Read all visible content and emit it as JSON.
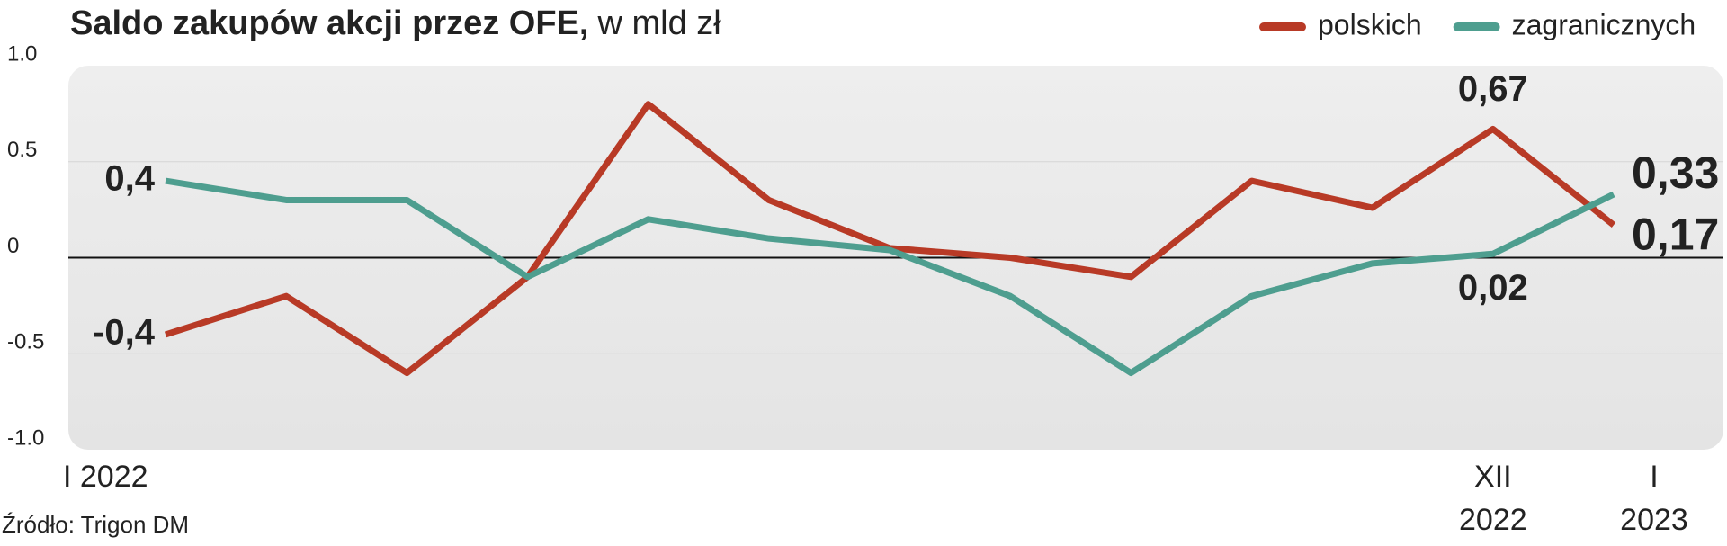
{
  "chart_data": {
    "type": "line",
    "title": "Saldo zakupów akcji przez OFE,",
    "subtitle": "w mld zł",
    "source": "Źródło: Trigon DM",
    "categories": [
      "I 2022",
      null,
      null,
      null,
      null,
      null,
      null,
      null,
      null,
      null,
      null,
      "XII 2022",
      "I 2023"
    ],
    "series": [
      {
        "name": "polskich",
        "color": "#b83a26",
        "values": [
          -0.4,
          -0.2,
          -0.6,
          -0.1,
          0.8,
          0.3,
          0.05,
          0.0,
          -0.1,
          0.4,
          0.26,
          0.67,
          0.17
        ],
        "value_labels": [
          "-0,4",
          null,
          null,
          null,
          null,
          null,
          null,
          null,
          null,
          null,
          null,
          "0,67",
          "0,17"
        ]
      },
      {
        "name": "zagranicznych",
        "color": "#4e9e8f",
        "values": [
          0.4,
          0.3,
          0.3,
          -0.1,
          0.2,
          0.1,
          0.04,
          -0.2,
          -0.6,
          -0.2,
          -0.03,
          0.02,
          0.33
        ],
        "value_labels": [
          "0,4",
          null,
          null,
          null,
          null,
          null,
          null,
          null,
          null,
          null,
          null,
          "0,02",
          "0,33"
        ]
      }
    ],
    "ylim": [
      -1,
      1
    ],
    "yticks": [
      {
        "value": 1,
        "label": "1.0"
      },
      0.5,
      0,
      -0.5,
      {
        "value": -1,
        "label": "-1.0"
      }
    ],
    "grid": true,
    "legend": "top-right"
  }
}
